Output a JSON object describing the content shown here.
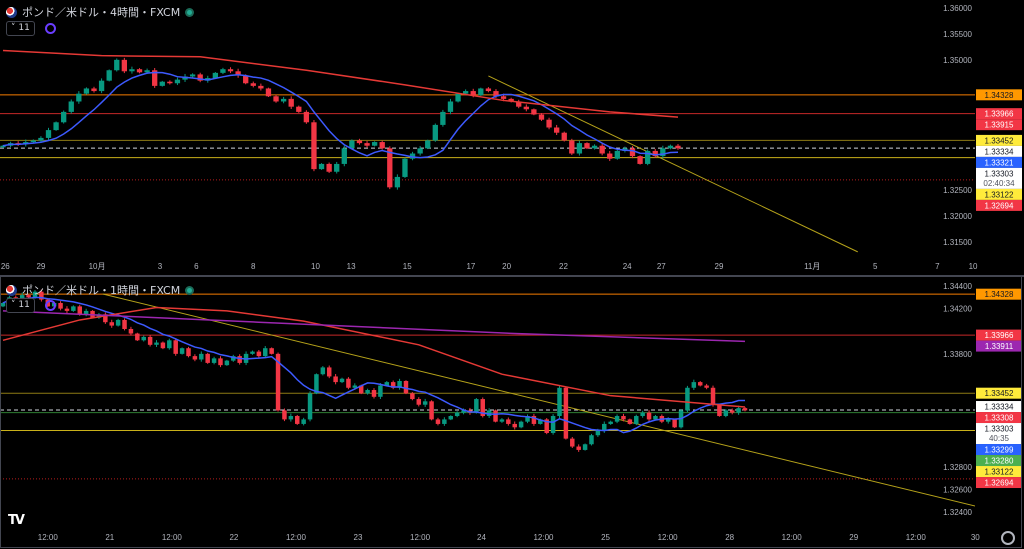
{
  "panes": [
    {
      "symbol_title": "ポンド／米ドル・4時間・FXCM",
      "indicator_count": "11"
    },
    {
      "symbol_title": "ポンド／米ドル・1時間・FXCM",
      "indicator_count": "11"
    }
  ],
  "colors": {
    "bull": "#089981",
    "bear": "#f23645",
    "background": "#000000",
    "axis_text": "#b2b5be"
  },
  "icons": {
    "logo": "tradingview-logo",
    "settings": "gear-icon",
    "symbol": "gbp-usd-flag-icon",
    "status": "market-open-dot-icon"
  },
  "chart_data": [
    {
      "type": "candlestick",
      "title": "ポンド／米ドル・4時間・FXCM",
      "y_range": [
        1.3125,
        1.3615
      ],
      "y_ticks": [
        "1.36000",
        "1.35500",
        "1.35000",
        "1.32500",
        "1.32000",
        "1.31500"
      ],
      "x_ticks": [
        {
          "label": "26",
          "bar": 0.3
        },
        {
          "label": "29",
          "bar": 5
        },
        {
          "label": "10月",
          "bar": 12.4
        },
        {
          "label": "3",
          "bar": 20.7
        },
        {
          "label": "6",
          "bar": 25.5
        },
        {
          "label": "8",
          "bar": 33
        },
        {
          "label": "10",
          "bar": 41.2
        },
        {
          "label": "13",
          "bar": 45.9
        },
        {
          "label": "15",
          "bar": 53.3
        },
        {
          "label": "17",
          "bar": 61.7
        },
        {
          "label": "20",
          "bar": 66.4
        },
        {
          "label": "22",
          "bar": 73.9
        },
        {
          "label": "24",
          "bar": 82.3
        },
        {
          "label": "27",
          "bar": 86.8
        },
        {
          "label": "29",
          "bar": 94.4
        },
        {
          "label": "11月",
          "bar": 106.7
        },
        {
          "label": "5",
          "bar": 115
        },
        {
          "label": "7",
          "bar": 123.2
        },
        {
          "label": "10",
          "bar": 127.9
        }
      ],
      "closes": [
        1.3335,
        1.334,
        1.3338,
        1.3342,
        1.3345,
        1.335,
        1.3365,
        1.338,
        1.34,
        1.342,
        1.3435,
        1.3445,
        1.344,
        1.346,
        1.348,
        1.35,
        1.3478,
        1.3482,
        1.3476,
        1.348,
        1.345,
        1.3458,
        1.3455,
        1.3462,
        1.3468,
        1.3472,
        1.346,
        1.3465,
        1.3475,
        1.3482,
        1.3478,
        1.347,
        1.3455,
        1.345,
        1.3445,
        1.343,
        1.342,
        1.3425,
        1.341,
        1.34,
        1.338,
        1.329,
        1.33,
        1.3285,
        1.33,
        1.333,
        1.3345,
        1.334,
        1.3335,
        1.3342,
        1.333,
        1.3255,
        1.3275,
        1.331,
        1.332,
        1.333,
        1.3345,
        1.3375,
        1.34,
        1.342,
        1.3435,
        1.344,
        1.3432,
        1.3445,
        1.344,
        1.343,
        1.3425,
        1.342,
        1.341,
        1.3405,
        1.3395,
        1.3385,
        1.337,
        1.336,
        1.3345,
        1.332,
        1.334,
        1.333,
        1.3335,
        1.332,
        1.331,
        1.3325,
        1.333,
        1.3315,
        1.33,
        1.3325,
        1.3315,
        1.333,
        1.3335,
        1.333
      ],
      "moving_averages": [
        {
          "color": "#3d5afe",
          "type": "sma",
          "period": 8
        },
        {
          "color": "#e53935",
          "points": [
            [
              0,
              1.3518
            ],
            [
              13,
              1.3508
            ],
            [
              26,
              1.3506
            ],
            [
              40,
              1.348
            ],
            [
              53,
              1.3452
            ],
            [
              66,
              1.3422
            ],
            [
              80,
              1.34
            ],
            [
              89,
              1.339
            ]
          ]
        }
      ],
      "levels": [
        {
          "price": 1.34328,
          "color": "#f57c00",
          "style": "solid"
        },
        {
          "price": 1.33966,
          "color": "#c62828",
          "style": "solid"
        },
        {
          "price": 1.33452,
          "color": "#8d7a14",
          "style": "solid"
        },
        {
          "price": 1.33303,
          "color": "#d1d4dc",
          "style": "dashed"
        },
        {
          "price": 1.33122,
          "color": "#c9b11a",
          "style": "solid"
        },
        {
          "price": 1.32694,
          "color": "#b71c1c",
          "style": "dotted"
        }
      ],
      "trendline": {
        "color": "#b5a21a",
        "points": [
          [
            64,
            1.3469
          ],
          [
            112.7,
            1.3131
          ]
        ]
      },
      "price_labels": [
        {
          "text": "1.34328",
          "price": 1.34328,
          "bg": "#ff9800",
          "fg": "#131722"
        },
        {
          "text": "1.33966",
          "price": 1.33966,
          "bg": "#f23645",
          "fg": "#ffffff"
        },
        {
          "text": "1.33915",
          "price": 1.33915,
          "bg": "#f23645",
          "fg": "#ffffff"
        },
        {
          "text": "1.33452",
          "price": 1.33452,
          "bg": "#ffeb3b",
          "fg": "#131722"
        },
        {
          "text": "1.33334",
          "price": 1.33334,
          "bg": "#ffffff",
          "fg": "#131722"
        },
        {
          "text": "1.33321",
          "price": 1.33321,
          "bg": "#2962ff",
          "fg": "#ffffff"
        },
        {
          "text": "1.33303",
          "sub": "02:40:34",
          "price": 1.33303,
          "bg": "#ffffff",
          "fg": "#131722"
        },
        {
          "text": "1.33122",
          "price": 1.33122,
          "bg": "#ffeb3b",
          "fg": "#131722"
        },
        {
          "text": "1.32694",
          "price": 1.32694,
          "bg": "#f23645",
          "fg": "#ffffff"
        }
      ]
    },
    {
      "type": "candlestick",
      "title": "ポンド／米ドル・1時間・FXCM",
      "y_range": [
        1.3233,
        1.3448
      ],
      "y_ticks": [
        "1.34400",
        "1.34200",
        "1.33800",
        "1.32800",
        "1.32600",
        "1.32400"
      ],
      "x_ticks": [
        {
          "label": "12:00",
          "bar": 7
        },
        {
          "label": "21",
          "bar": 16.7
        },
        {
          "label": "12:00",
          "bar": 26.4
        },
        {
          "label": "22",
          "bar": 36.1
        },
        {
          "label": "12:00",
          "bar": 45.8
        },
        {
          "label": "23",
          "bar": 55.5
        },
        {
          "label": "12:00",
          "bar": 65.2
        },
        {
          "label": "24",
          "bar": 74.8
        },
        {
          "label": "12:00",
          "bar": 84.5
        },
        {
          "label": "25",
          "bar": 94.2
        },
        {
          "label": "12:00",
          "bar": 103.9
        },
        {
          "label": "28",
          "bar": 113.6
        },
        {
          "label": "12:00",
          "bar": 123.3
        },
        {
          "label": "29",
          "bar": 133
        },
        {
          "label": "12:00",
          "bar": 142.7
        },
        {
          "label": "30",
          "bar": 152
        }
      ],
      "closes": [
        1.3425,
        1.343,
        1.3428,
        1.3432,
        1.343,
        1.3435,
        1.3428,
        1.3422,
        1.3425,
        1.342,
        1.3418,
        1.3422,
        1.3415,
        1.3418,
        1.3412,
        1.3415,
        1.3408,
        1.3405,
        1.341,
        1.3402,
        1.3398,
        1.3392,
        1.3395,
        1.3388,
        1.339,
        1.3385,
        1.3392,
        1.338,
        1.3385,
        1.3378,
        1.3375,
        1.338,
        1.3372,
        1.3376,
        1.337,
        1.3374,
        1.3378,
        1.3372,
        1.338,
        1.3382,
        1.3378,
        1.3385,
        1.338,
        1.333,
        1.3322,
        1.3325,
        1.3318,
        1.3322,
        1.3345,
        1.3362,
        1.3368,
        1.336,
        1.3355,
        1.3358,
        1.335,
        1.3352,
        1.3345,
        1.3348,
        1.3342,
        1.3352,
        1.3355,
        1.335,
        1.3356,
        1.3345,
        1.334,
        1.3335,
        1.3338,
        1.3322,
        1.3318,
        1.3322,
        1.3325,
        1.3328,
        1.333,
        1.3328,
        1.334,
        1.3325,
        1.333,
        1.332,
        1.3322,
        1.3318,
        1.3315,
        1.332,
        1.3325,
        1.3318,
        1.3322,
        1.331,
        1.3325,
        1.335,
        1.3305,
        1.3298,
        1.3295,
        1.33,
        1.3308,
        1.3312,
        1.3318,
        1.332,
        1.3325,
        1.3322,
        1.3318,
        1.3325,
        1.3328,
        1.3322,
        1.3325,
        1.332,
        1.3322,
        1.3315,
        1.333,
        1.335,
        1.3355,
        1.3352,
        1.335,
        1.3335,
        1.3325,
        1.333,
        1.3328,
        1.3332,
        1.333
      ],
      "moving_averages": [
        {
          "color": "#3d5afe",
          "type": "sma",
          "period": 10
        },
        {
          "color": "#e53935",
          "points": [
            [
              0,
              1.3392
            ],
            [
              12,
              1.341
            ],
            [
              24,
              1.3421
            ],
            [
              35,
              1.3418
            ],
            [
              47,
              1.3409
            ],
            [
              65,
              1.3388
            ],
            [
              78,
              1.3362
            ],
            [
              95,
              1.3343
            ],
            [
              116,
              1.3333
            ]
          ]
        },
        {
          "color": "#9c27b0",
          "points": [
            [
              0,
              1.3418
            ],
            [
              40,
              1.3408
            ],
            [
              80,
              1.3398
            ],
            [
              116,
              1.3391
            ]
          ]
        }
      ],
      "levels": [
        {
          "price": 1.34328,
          "color": "#f57c00",
          "style": "solid"
        },
        {
          "price": 1.33966,
          "color": "#c62828",
          "style": "solid"
        },
        {
          "price": 1.33452,
          "color": "#8d7a14",
          "style": "solid"
        },
        {
          "price": 1.33303,
          "color": "#d1d4dc",
          "style": "dashed"
        },
        {
          "price": 1.3328,
          "color": "#2e7d32",
          "style": "solid"
        },
        {
          "price": 1.33122,
          "color": "#c9b11a",
          "style": "solid"
        },
        {
          "price": 1.32694,
          "color": "#b71c1c",
          "style": "dotted"
        }
      ],
      "trendline": {
        "color": "#b5a21a",
        "points": [
          [
            15.6,
            1.3433
          ],
          [
            156.6,
            1.3239
          ]
        ]
      },
      "price_labels": [
        {
          "text": "1.34328",
          "price": 1.34328,
          "bg": "#ff9800",
          "fg": "#131722"
        },
        {
          "text": "1.33966",
          "price": 1.33966,
          "bg": "#f23645",
          "fg": "#ffffff"
        },
        {
          "text": "1.33911",
          "price": 1.33911,
          "bg": "#9c27b0",
          "fg": "#ffffff"
        },
        {
          "text": "1.33452",
          "price": 1.33452,
          "bg": "#ffeb3b",
          "fg": "#131722"
        },
        {
          "text": "1.33334",
          "price": 1.33334,
          "bg": "#ffffff",
          "fg": "#131722"
        },
        {
          "text": "1.33308",
          "price": 1.33308,
          "bg": "#f23645",
          "fg": "#ffffff"
        },
        {
          "text": "1.33303",
          "sub": "40:35",
          "price": 1.33303,
          "bg": "#ffffff",
          "fg": "#131722"
        },
        {
          "text": "1.33299",
          "price": 1.33299,
          "bg": "#2962ff",
          "fg": "#ffffff"
        },
        {
          "text": "1.33280",
          "price": 1.3328,
          "bg": "#4caf50",
          "fg": "#ffffff"
        },
        {
          "text": "1.33122",
          "price": 1.33122,
          "bg": "#ffeb3b",
          "fg": "#131722"
        },
        {
          "text": "1.32694",
          "price": 1.32694,
          "bg": "#f23645",
          "fg": "#ffffff"
        }
      ]
    }
  ]
}
